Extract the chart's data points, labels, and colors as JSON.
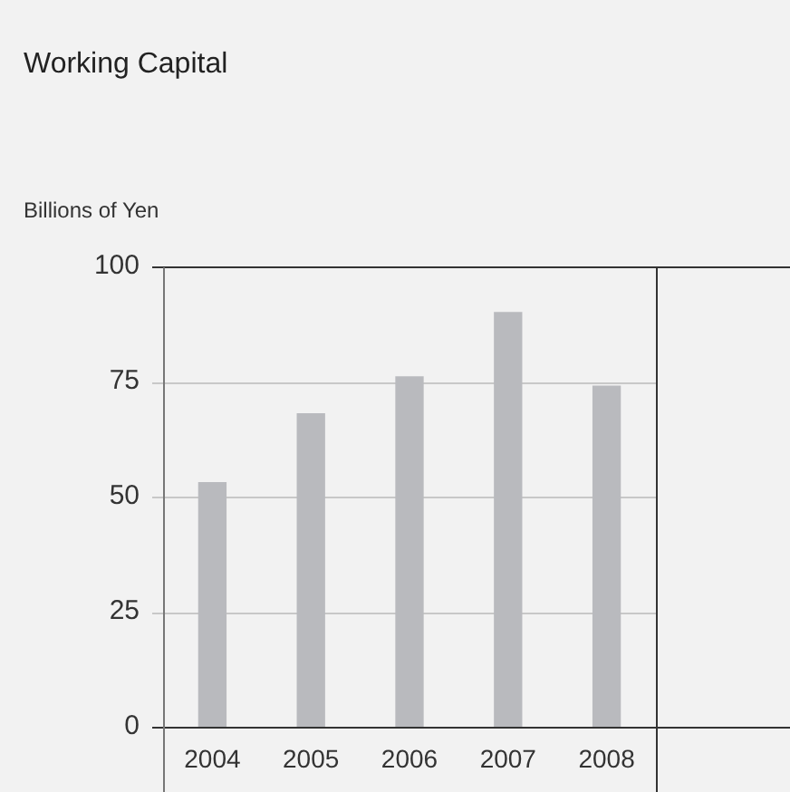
{
  "chart_data": {
    "type": "bar",
    "title": "Working Capital",
    "ylabel": "Billions of Yen",
    "categories": [
      "2004",
      "2005",
      "2006",
      "2007",
      "2008"
    ],
    "values": [
      53,
      68,
      76,
      90,
      74
    ],
    "color": "#b9babe",
    "ylim": [
      0,
      100
    ],
    "yticks": [
      0,
      25,
      50,
      75,
      100
    ],
    "grid": "y",
    "legend": false
  }
}
